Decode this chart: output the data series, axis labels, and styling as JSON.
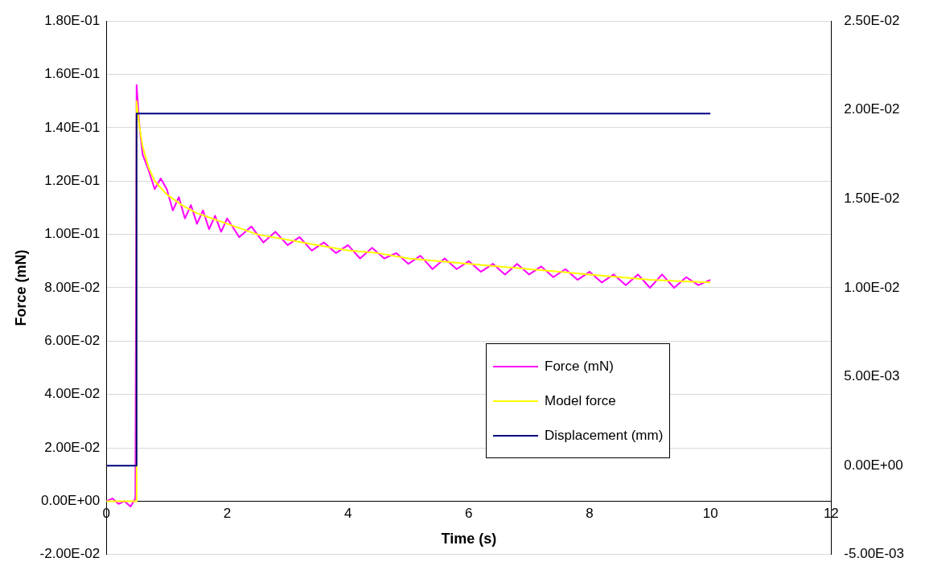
{
  "chart_data": {
    "type": "line",
    "xlabel": "Time (s)",
    "ylabel": "Force (mN)",
    "xlim": [
      0,
      12
    ],
    "xticks": [
      0,
      2,
      4,
      6,
      8,
      10,
      12
    ],
    "ylim": [
      -0.02,
      0.18
    ],
    "yticks": [
      {
        "value": -0.02,
        "label": "-2.00E-02"
      },
      {
        "value": 0,
        "label": "0.00E+00"
      },
      {
        "value": 0.02,
        "label": "2.00E-02"
      },
      {
        "value": 0.04,
        "label": "4.00E-02"
      },
      {
        "value": 0.06,
        "label": "6.00E-02"
      },
      {
        "value": 0.08,
        "label": "8.00E-02"
      },
      {
        "value": 0.1,
        "label": "1.00E-01"
      },
      {
        "value": 0.12,
        "label": "1.20E-01"
      },
      {
        "value": 0.14,
        "label": "1.40E-01"
      },
      {
        "value": 0.16,
        "label": "1.60E-01"
      },
      {
        "value": 0.18,
        "label": "1.80E-01"
      }
    ],
    "y2lim": [
      -0.005,
      0.025
    ],
    "y2ticks": [
      {
        "value": -0.005,
        "label": "-5.00E-03"
      },
      {
        "value": 0,
        "label": "0.00E+00"
      },
      {
        "value": 0.005,
        "label": "5.00E-03"
      },
      {
        "value": 0.01,
        "label": "1.00E-02"
      },
      {
        "value": 0.015,
        "label": "1.50E-02"
      },
      {
        "value": 0.02,
        "label": "2.00E-02"
      },
      {
        "value": 0.025,
        "label": "2.50E-02"
      }
    ],
    "grid": "y",
    "legend": "right",
    "marker": "none",
    "line_style": "solid",
    "series": [
      {
        "name": "Force (mN)",
        "color": "#ff00ff",
        "x": [
          0,
          0.1,
          0.2,
          0.3,
          0.4,
          0.48,
          0.5,
          0.55,
          0.6,
          0.7,
          0.8,
          0.9,
          1.0,
          1.1,
          1.2,
          1.3,
          1.4,
          1.5,
          1.6,
          1.7,
          1.8,
          1.9,
          2.0,
          2.2,
          2.4,
          2.6,
          2.8,
          3.0,
          3.2,
          3.4,
          3.6,
          3.8,
          4.0,
          4.2,
          4.4,
          4.6,
          4.8,
          5.0,
          5.2,
          5.4,
          5.6,
          5.8,
          6.0,
          6.2,
          6.4,
          6.6,
          6.8,
          7.0,
          7.2,
          7.4,
          7.6,
          7.8,
          8.0,
          8.2,
          8.4,
          8.6,
          8.8,
          9.0,
          9.2,
          9.4,
          9.6,
          9.8,
          10
        ],
        "values": [
          0,
          0.001,
          -0.001,
          0,
          -0.002,
          0.001,
          0.156,
          0.14,
          0.13,
          0.124,
          0.117,
          0.121,
          0.117,
          0.109,
          0.114,
          0.106,
          0.111,
          0.104,
          0.109,
          0.102,
          0.107,
          0.101,
          0.106,
          0.099,
          0.103,
          0.097,
          0.101,
          0.096,
          0.099,
          0.094,
          0.097,
          0.093,
          0.096,
          0.091,
          0.095,
          0.091,
          0.093,
          0.089,
          0.092,
          0.087,
          0.091,
          0.087,
          0.09,
          0.086,
          0.089,
          0.085,
          0.089,
          0.085,
          0.088,
          0.084,
          0.087,
          0.083,
          0.086,
          0.082,
          0.085,
          0.081,
          0.085,
          0.08,
          0.085,
          0.08,
          0.084,
          0.081,
          0.083
        ]
      },
      {
        "name": "Model force",
        "color": "#ffff00",
        "x": [
          0,
          0.5,
          0.5,
          0.55,
          0.6,
          0.7,
          0.8,
          1.0,
          1.25,
          1.5,
          2,
          2.5,
          3,
          3.5,
          4,
          4.5,
          5,
          5.5,
          6,
          6.5,
          7,
          7.5,
          8,
          8.5,
          9,
          9.5,
          10
        ],
        "values": [
          0,
          0,
          0.15,
          0.14,
          0.133,
          0.125,
          0.12,
          0.115,
          0.111,
          0.108,
          0.104,
          0.1,
          0.098,
          0.096,
          0.094,
          0.093,
          0.091,
          0.09,
          0.089,
          0.088,
          0.087,
          0.086,
          0.085,
          0.084,
          0.083,
          0.0825,
          0.082
        ]
      },
      {
        "name": "Displacement (mm)",
        "color": "#000080",
        "axis": "y2",
        "x": [
          0,
          0.5,
          0.5,
          10
        ],
        "values": [
          0,
          0,
          0.0198,
          0.0198
        ]
      }
    ]
  }
}
